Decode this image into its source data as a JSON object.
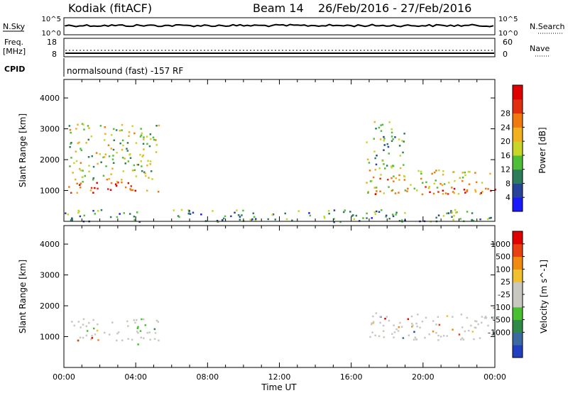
{
  "header": {
    "station": "Kodiak (fitACF)",
    "beam": "Beam 14",
    "date_range": "26/Feb/2016 - 27/Feb/2016"
  },
  "status_panels": {
    "nsky_label": "N.Sky",
    "nsky_ticks": [
      "10^5",
      "10^0"
    ],
    "nsearch_label": "N.Search",
    "nsearch_ticks": [
      "10^5",
      "10^0"
    ],
    "freq_label_1": "Freq.",
    "freq_label_2": "[MHz]",
    "freq_ticks": [
      "18",
      "8"
    ],
    "nave_label": "Nave",
    "nave_ticks": [
      "60",
      "0"
    ],
    "cpid_label": "CPID",
    "cpid_value": "normalsound (fast) -157 RF"
  },
  "chart_data": [
    {
      "type": "heatmap",
      "name": "power",
      "ylabel": "Slant Range [km]",
      "y_ticks": [
        1000,
        2000,
        3000,
        4000
      ],
      "ylim": [
        0,
        4600
      ],
      "xlim_hours": [
        0,
        24
      ],
      "colorbar": {
        "label": "Power [dB]",
        "ticks": [
          "4",
          "8",
          "12",
          "16",
          "20",
          "24",
          "28"
        ],
        "colors": [
          "#1a1aff",
          "#27449a",
          "#2e7d5a",
          "#4fbf3a",
          "#c8d62a",
          "#f0b020",
          "#f07a10",
          "#e03010",
          "#e00000"
        ]
      },
      "regions": [
        {
          "label": "main band",
          "t": [
            0.2,
            5.3
          ],
          "range": [
            900,
            1300
          ],
          "level": 0.85
        },
        {
          "label": "upper scatter",
          "t": [
            0.2,
            5.3
          ],
          "range": [
            1300,
            3200
          ],
          "level": 0.45
        },
        {
          "label": "evening band",
          "t": [
            16.8,
            24
          ],
          "range": [
            900,
            1700
          ],
          "level": 0.6
        },
        {
          "label": "evening low",
          "t": [
            17.2,
            24
          ],
          "range": [
            900,
            1100
          ],
          "level": 0.9
        },
        {
          "label": "evening upper",
          "t": [
            16.8,
            19
          ],
          "range": [
            1700,
            3300
          ],
          "level": 0.35
        },
        {
          "label": "ground noise",
          "t": [
            0,
            24
          ],
          "range": [
            0,
            400
          ],
          "level": 0.3
        }
      ]
    },
    {
      "type": "heatmap",
      "name": "velocity",
      "ylabel": "Slant Range [km]",
      "y_ticks": [
        1000,
        2000,
        3000,
        4000
      ],
      "ylim": [
        0,
        4600
      ],
      "xlim_hours": [
        0,
        24
      ],
      "x_ticks": [
        "00:00",
        "04:00",
        "08:00",
        "12:00",
        "16:00",
        "20:00",
        "00:00"
      ],
      "xlabel": "Time UT",
      "colorbar": {
        "label": "Velocity [m s^-1]",
        "ticks": [
          "1000",
          "500",
          "100",
          "25",
          "-25",
          "-100",
          "-500",
          "-1000"
        ],
        "colors": [
          "#2040c0",
          "#3a6aa0",
          "#2f8a4a",
          "#48c030",
          "#c8c8c0",
          "#c8c8c0",
          "#f0c030",
          "#f08a10",
          "#e84010",
          "#e00000"
        ]
      },
      "regions": [
        {
          "label": "main band",
          "t": [
            0.2,
            5.3
          ],
          "range": [
            900,
            1600
          ],
          "level": 0.5
        },
        {
          "label": "evening band",
          "t": [
            17,
            24
          ],
          "range": [
            900,
            1800
          ],
          "level": 0.5
        },
        {
          "label": "green feature",
          "t": [
            4.0,
            4.5
          ],
          "range": [
            700,
            1600
          ],
          "level": 0.3
        }
      ]
    }
  ]
}
